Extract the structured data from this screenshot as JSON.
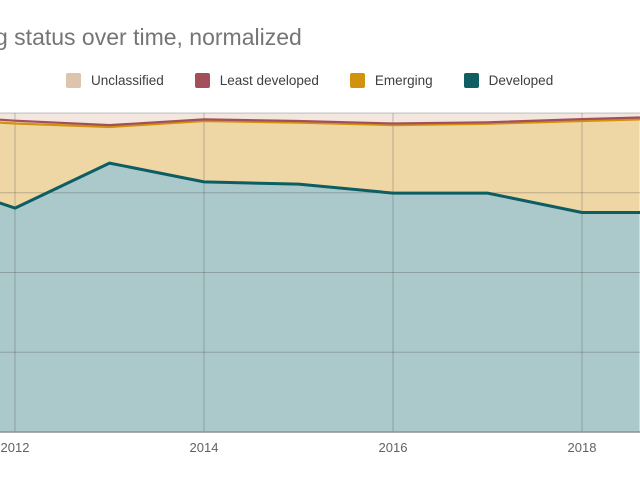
{
  "title": "g status over time, normalized",
  "legend": {
    "items": [
      {
        "label": "Unclassified",
        "color": "#dcc4ad"
      },
      {
        "label": "Least developed",
        "color": "#a34f5b"
      },
      {
        "label": "Emerging",
        "color": "#d1930d"
      },
      {
        "label": "Developed",
        "color": "#115f63"
      }
    ]
  },
  "x_axis": {
    "ticks": [
      "2012",
      "2014",
      "2016",
      "2018"
    ]
  },
  "chart_data": {
    "type": "area",
    "stacked": true,
    "normalized": true,
    "title": "g status over time, normalized",
    "xlabel": "",
    "ylabel": "",
    "xlim": [
      2011.84,
      2018.61
    ],
    "ylim": [
      0,
      1
    ],
    "legend_position": "top",
    "grid": true,
    "x": [
      2011.84,
      2012,
      2013,
      2014,
      2015,
      2016,
      2017,
      2018,
      2018.61
    ],
    "x_gridlines": [
      2012,
      2014,
      2016,
      2018
    ],
    "y_gridlines": [
      0.25,
      0.5,
      0.75,
      1.0
    ],
    "series": [
      {
        "name": "Developed",
        "line": "#0d5e63",
        "line_width": 3,
        "fill": "#abc8cb",
        "values": [
          0.718,
          0.702,
          0.843,
          0.784,
          0.777,
          0.749,
          0.749,
          0.688,
          0.688
        ]
      },
      {
        "name": "Emerging",
        "line": "#d1930d",
        "line_width": 2.2,
        "fill": "#eed6a5",
        "values": [
          0.252,
          0.265,
          0.113,
          0.191,
          0.193,
          0.213,
          0.217,
          0.287,
          0.292
        ]
      },
      {
        "name": "Least developed",
        "line": "#a34f5b",
        "line_width": 2.2,
        "fill": "#ecd2cc",
        "values": [
          0.009,
          0.009,
          0.006,
          0.005,
          0.005,
          0.005,
          0.005,
          0.006,
          0.006
        ]
      },
      {
        "name": "Unclassified",
        "line": null,
        "line_width": 0,
        "fill": "#f2e6de",
        "values": [
          0.021,
          0.024,
          0.038,
          0.02,
          0.025,
          0.033,
          0.029,
          0.019,
          0.014
        ]
      }
    ],
    "axis_line_color": "#8f8f8f",
    "gridline_color": "rgba(70,70,70,0.3)"
  }
}
